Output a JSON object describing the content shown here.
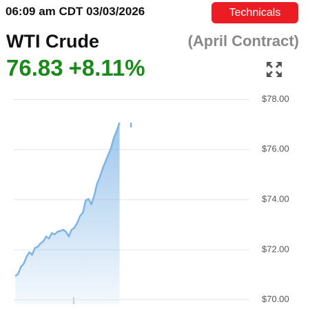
{
  "header": {
    "timestamp": "06:09 am CDT 03/03/2026",
    "button": "Technicals",
    "instrument": "WTI Crude",
    "contract": "(April Contract)",
    "price": "76.83",
    "change": "+8.11%"
  },
  "chart_data": {
    "type": "area",
    "x": [
      0,
      1,
      2,
      3,
      4,
      5,
      6,
      7,
      8,
      9,
      10,
      11,
      12,
      13,
      14,
      15,
      16,
      17,
      18,
      19,
      20,
      21,
      22,
      23,
      24,
      25,
      26,
      27,
      28,
      29,
      30,
      31,
      32,
      33,
      34,
      35,
      36,
      37,
      38,
      41,
      41.1
    ],
    "series": [
      {
        "name": "WTI Crude",
        "color": "#7db4e6",
        "values": [
          70.95,
          71.03,
          71.31,
          71.44,
          71.71,
          71.9,
          71.8,
          72.07,
          72.12,
          72.26,
          72.34,
          72.53,
          72.45,
          72.67,
          72.61,
          72.72,
          72.75,
          72.8,
          72.72,
          72.53,
          72.8,
          72.88,
          73.07,
          73.35,
          73.48,
          73.97,
          74.03,
          73.81,
          74.16,
          74.63,
          74.9,
          75.25,
          75.52,
          75.8,
          76.07,
          76.48,
          76.75,
          77.07,
          null,
          77.07,
          76.88
        ]
      }
    ],
    "xlim": [
      -0.5,
      83
    ],
    "ylim": [
      69.83,
      78.15
    ],
    "yticks": [
      {
        "value": 70,
        "label": "$70.00"
      },
      {
        "value": 72,
        "label": "$72.00"
      },
      {
        "value": 74,
        "label": "$74.00"
      },
      {
        "value": 76,
        "label": "$76.00"
      },
      {
        "value": 78,
        "label": "$78.00"
      }
    ],
    "grid": true
  }
}
